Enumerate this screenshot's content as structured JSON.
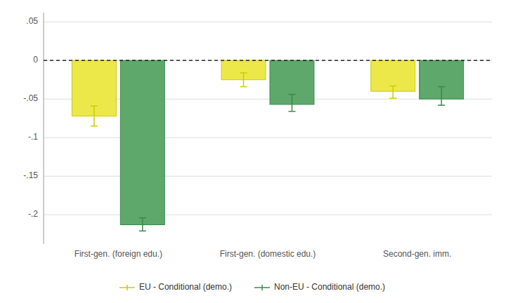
{
  "chart_data": {
    "type": "bar",
    "categories": [
      "First-gen. (foreign edu.)",
      "First-gen. (domestic edu.)",
      "Second-gen. imm."
    ],
    "series": [
      {
        "name": "EU - Conditional (demo.)",
        "color": "#EDE84A",
        "edge_color": "#CCCC00",
        "values": [
          -0.072,
          -0.025,
          -0.04
        ],
        "error_low": [
          0.013,
          0.009,
          0.009
        ],
        "error_high": [
          0.013,
          0.009,
          0.007
        ]
      },
      {
        "name": "Non-EU - Conditional (demo.)",
        "color": "#5DA86A",
        "edge_color": "#3A8A4A",
        "values": [
          -0.213,
          -0.057,
          -0.05
        ],
        "error_low": [
          0.008,
          0.009,
          0.008
        ],
        "error_high": [
          0.009,
          0.013,
          0.016
        ]
      }
    ],
    "ylim": [
      -0.238,
      0.062
    ],
    "yticks": [
      {
        "value": 0.05,
        "label": ".05"
      },
      0,
      {
        "value": -0.05,
        "label": "-.05"
      },
      {
        "value": -0.1,
        "label": "-.1"
      },
      {
        "value": -0.15,
        "label": "-.15"
      },
      {
        "value": -0.2,
        "label": "-.2"
      }
    ],
    "hline": 0,
    "grid": true,
    "legend": "bottom"
  }
}
